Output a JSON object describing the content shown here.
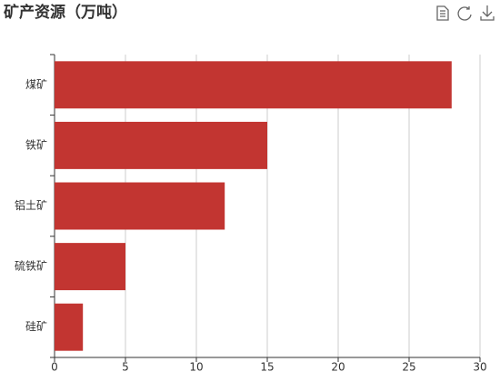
{
  "chart_data": {
    "type": "bar",
    "orientation": "horizontal",
    "title": "矿产资源（万吨）",
    "categories": [
      "煤矿",
      "铁矿",
      "铝土矿",
      "硫铁矿",
      "硅矿"
    ],
    "values": [
      28,
      15,
      12,
      5,
      2
    ],
    "color": "#c23531",
    "xlim": [
      0,
      30
    ],
    "xticks": [
      0,
      5,
      10,
      15,
      20,
      25,
      30
    ],
    "grid": true
  }
}
